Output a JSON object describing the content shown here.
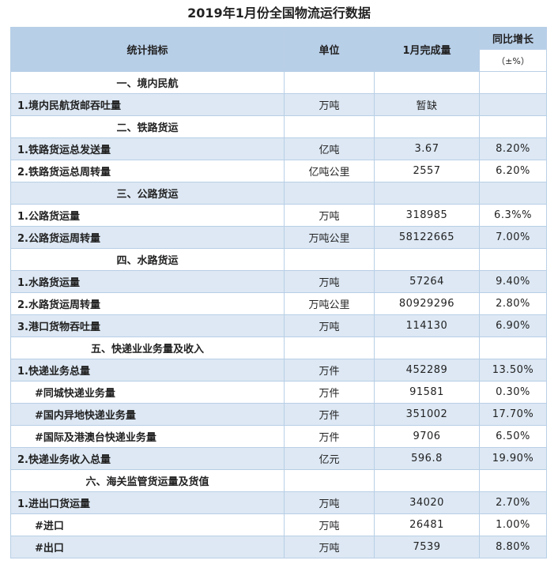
{
  "title": "2019年1月份全国物流运行数据",
  "header": {
    "col1": "统计指标",
    "col2": "单位",
    "col3": "1月完成量",
    "col4": "同比增长",
    "col4_unit": "（±%）"
  },
  "rows": [
    {
      "kind": "section",
      "label": "一、境内民航",
      "unit": "",
      "value": "",
      "growth": ""
    },
    {
      "kind": "item",
      "label": "1.境内民航货邮吞吐量",
      "unit": "万吨",
      "value": "暂缺",
      "growth": ""
    },
    {
      "kind": "section",
      "label": "二、铁路货运",
      "unit": "",
      "value": "",
      "growth": ""
    },
    {
      "kind": "item",
      "label": "1.铁路货运总发送量",
      "unit": "亿吨",
      "value": "3.67",
      "growth": "8.20%"
    },
    {
      "kind": "item",
      "label": "2.铁路货运总周转量",
      "unit": "亿吨公里",
      "value": "2557",
      "growth": "6.20%"
    },
    {
      "kind": "section",
      "label": "三、公路货运",
      "unit": "",
      "value": "",
      "growth": ""
    },
    {
      "kind": "item",
      "label": "1.公路货运量",
      "unit": "万吨",
      "value": "318985",
      "growth": "6.3%%"
    },
    {
      "kind": "item",
      "label": "2.公路货运周转量",
      "unit": "万吨公里",
      "value": "58122665",
      "growth": "7.00%"
    },
    {
      "kind": "section",
      "label": "四、水路货运",
      "unit": "",
      "value": "",
      "growth": ""
    },
    {
      "kind": "item",
      "label": "1.水路货运量",
      "unit": "万吨",
      "value": "57264",
      "growth": "9.40%"
    },
    {
      "kind": "item",
      "label": "2.水路货运周转量",
      "unit": "万吨公里",
      "value": "80929296",
      "growth": "2.80%"
    },
    {
      "kind": "item",
      "label": "3.港口货物吞吐量",
      "unit": "万吨",
      "value": "114130",
      "growth": "6.90%"
    },
    {
      "kind": "section",
      "label": "五、快递业业务量及收入",
      "unit": "",
      "value": "",
      "growth": ""
    },
    {
      "kind": "item",
      "label": "1.快递业务总量",
      "unit": "万件",
      "value": "452289",
      "growth": "13.50%"
    },
    {
      "kind": "sub",
      "label": "#同城快递业务量",
      "unit": "万件",
      "value": "91581",
      "growth": "0.30%"
    },
    {
      "kind": "sub",
      "label": "#国内异地快递业务量",
      "unit": "万件",
      "value": "351002",
      "growth": "17.70%"
    },
    {
      "kind": "sub",
      "label": "#国际及港澳台快递业务量",
      "unit": "万件",
      "value": "9706",
      "growth": "6.50%"
    },
    {
      "kind": "item",
      "label": "2.快递业务收入总量",
      "unit": "亿元",
      "value": "596.8",
      "growth": "19.90%"
    },
    {
      "kind": "section",
      "label": "六、海关监管货运量及货值",
      "unit": "",
      "value": "",
      "growth": ""
    },
    {
      "kind": "item",
      "label": "1.进出口货运量",
      "unit": "万吨",
      "value": "34020",
      "growth": "2.70%"
    },
    {
      "kind": "sub",
      "label": "#进口",
      "unit": "万吨",
      "value": "26481",
      "growth": "1.00%"
    },
    {
      "kind": "sub",
      "label": "#出口",
      "unit": "万吨",
      "value": "7539",
      "growth": "8.80%"
    }
  ]
}
